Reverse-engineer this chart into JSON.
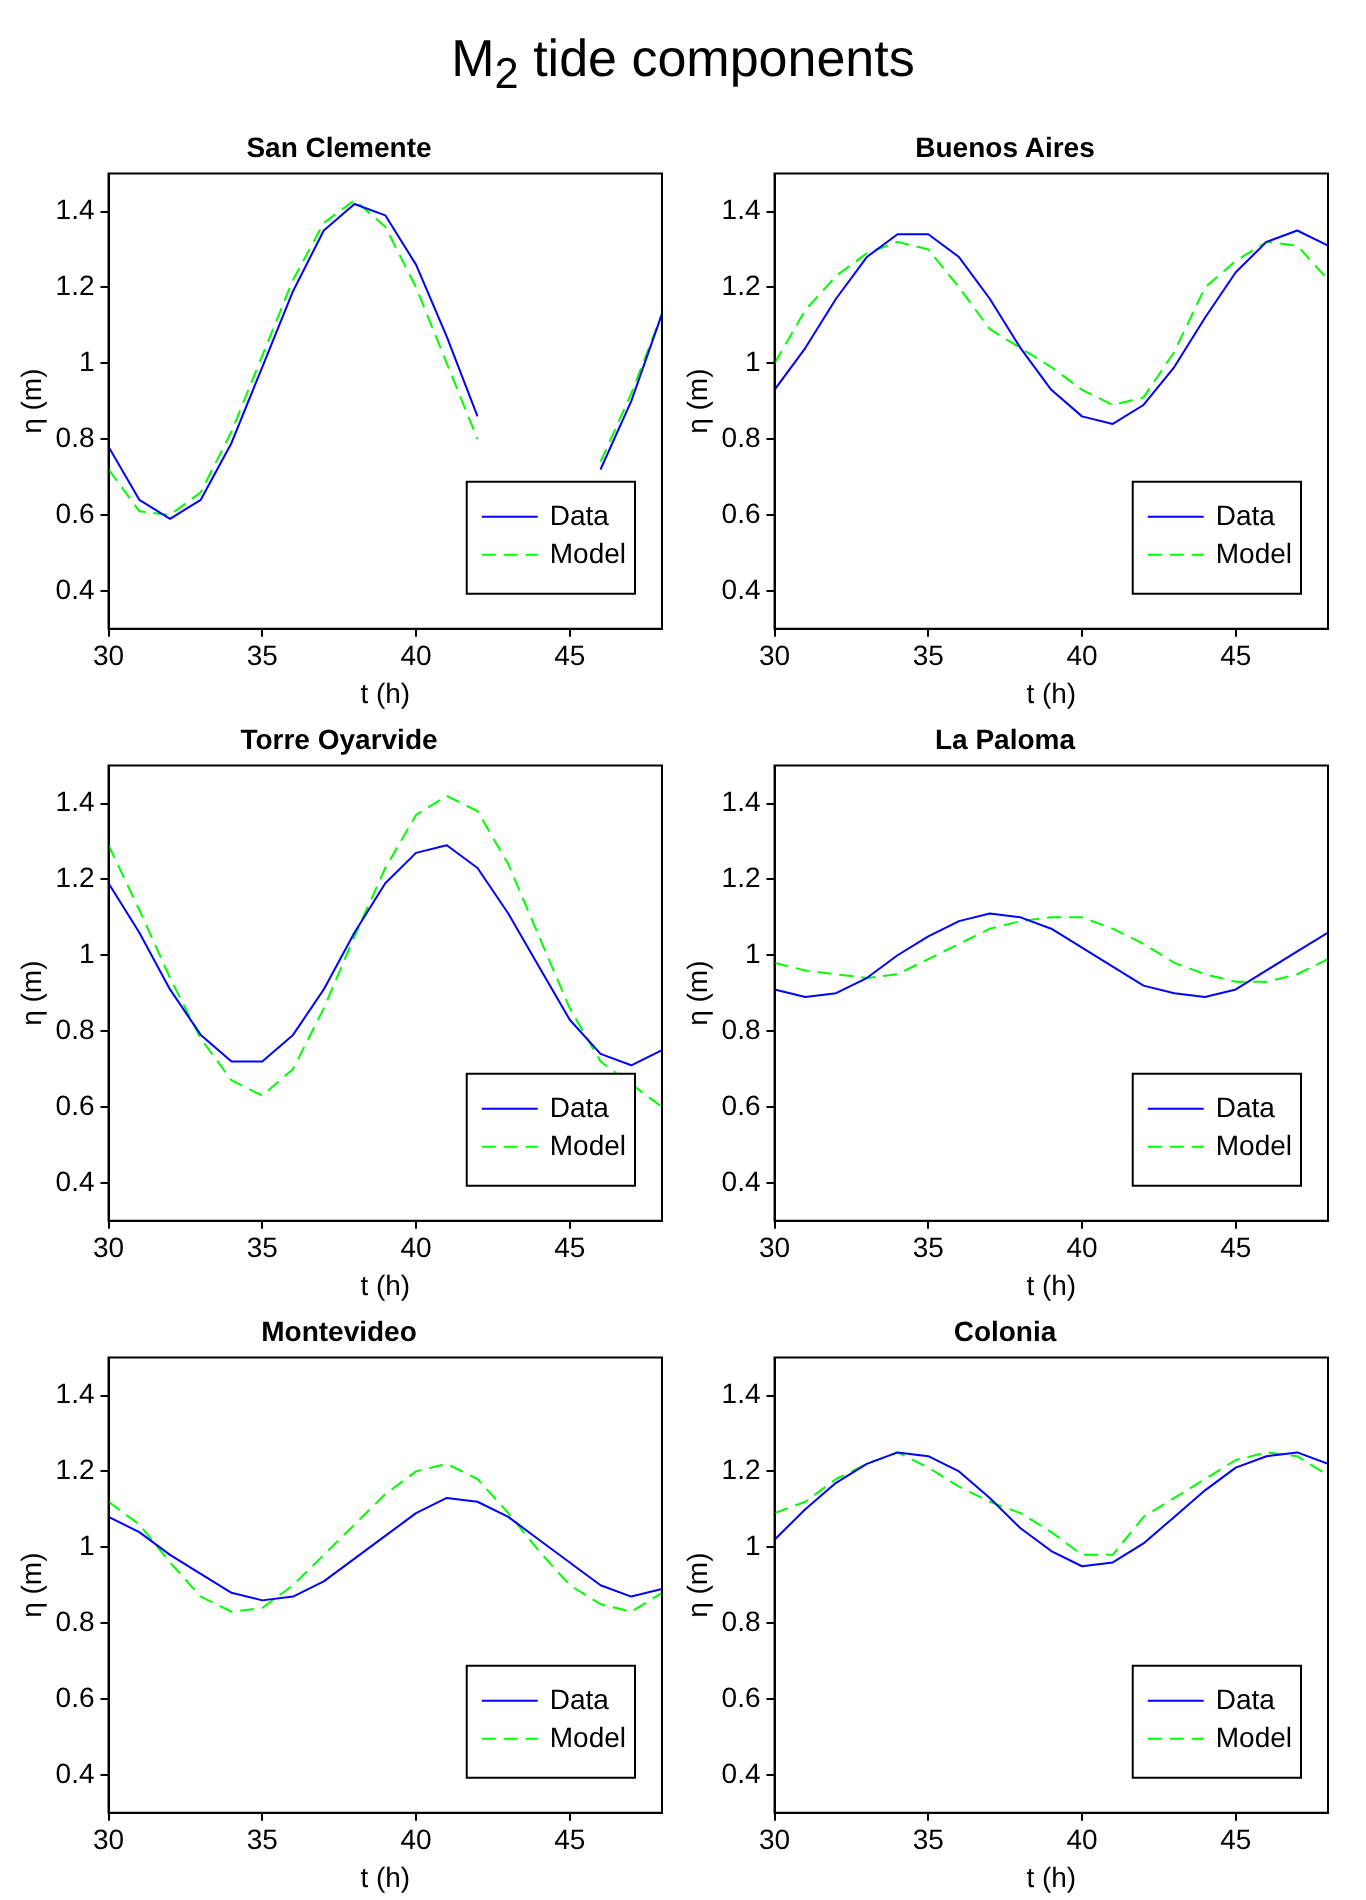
{
  "chart_data": [
    {
      "type": "other",
      "title": "M$_{2}$ tide components"
    },
    {
      "type": "line",
      "title": "San Clemente",
      "xlabel": "t (h)",
      "ylabel": "η (m)",
      "x": [
        30,
        31,
        32,
        33,
        34,
        35,
        36,
        37,
        38,
        39,
        40,
        41,
        42,
        43,
        44,
        45,
        46,
        47,
        48
      ],
      "xlim": [
        30,
        48
      ],
      "xticks": [
        30,
        35,
        40,
        45
      ],
      "ylim": [
        0.3,
        1.5
      ],
      "yticks": [
        0.4,
        0.6,
        0.8,
        1,
        1.2,
        1.4
      ],
      "legend": "bottom right",
      "series": [
        {
          "name": "Data",
          "color": "#0000ff",
          "line_style": "solid",
          "values": [
            0.78,
            0.64,
            0.59,
            0.64,
            0.79,
            0.99,
            1.19,
            1.35,
            1.42,
            1.39,
            1.26,
            1.07,
            0.86,
            null,
            null,
            null,
            0.72,
            0.9,
            1.13
          ]
        },
        {
          "name": "Model",
          "color": "#00ff00",
          "line_style": "dashed",
          "values": [
            0.72,
            0.61,
            0.6,
            0.66,
            0.82,
            1.02,
            1.22,
            1.37,
            1.43,
            1.36,
            1.2,
            1,
            0.8,
            null,
            null,
            null,
            0.74,
            0.92,
            1.13
          ]
        }
      ]
    },
    {
      "type": "line",
      "title": "Buenos Aires",
      "xlabel": "t (h)",
      "ylabel": "η (m)",
      "x": [
        30,
        31,
        32,
        33,
        34,
        35,
        36,
        37,
        38,
        39,
        40,
        41,
        42,
        43,
        44,
        45,
        46,
        47,
        48
      ],
      "xlim": [
        30,
        48
      ],
      "xticks": [
        30,
        35,
        40,
        45
      ],
      "ylim": [
        0.3,
        1.5
      ],
      "yticks": [
        0.4,
        0.6,
        0.8,
        1,
        1.2,
        1.4
      ],
      "legend": "bottom right",
      "series": [
        {
          "name": "Data",
          "color": "#0000ff",
          "line_style": "solid",
          "values": [
            0.93,
            1.04,
            1.17,
            1.28,
            1.34,
            1.34,
            1.28,
            1.17,
            1.04,
            0.93,
            0.86,
            0.84,
            0.89,
            0.99,
            1.12,
            1.24,
            1.32,
            1.35,
            1.31
          ]
        },
        {
          "name": "Model",
          "color": "#00ff00",
          "line_style": "dashed",
          "values": [
            1,
            1.14,
            1.23,
            1.29,
            1.32,
            1.3,
            1.2,
            1.09,
            1.04,
            0.99,
            0.93,
            0.89,
            0.91,
            1.03,
            1.2,
            1.27,
            1.32,
            1.31,
            1.22
          ]
        }
      ]
    },
    {
      "type": "line",
      "title": "Torre Oyarvide",
      "xlabel": "t (h)",
      "ylabel": "η (m)",
      "x": [
        30,
        31,
        32,
        33,
        34,
        35,
        36,
        37,
        38,
        39,
        40,
        41,
        42,
        43,
        44,
        45,
        46,
        47,
        48
      ],
      "xlim": [
        30,
        48
      ],
      "xticks": [
        30,
        35,
        40,
        45
      ],
      "ylim": [
        0.3,
        1.5
      ],
      "yticks": [
        0.4,
        0.6,
        0.8,
        1,
        1.2,
        1.4
      ],
      "legend": "bottom right",
      "series": [
        {
          "name": "Data",
          "color": "#0000ff",
          "line_style": "solid",
          "values": [
            1.19,
            1.06,
            0.91,
            0.79,
            0.72,
            0.72,
            0.79,
            0.91,
            1.06,
            1.19,
            1.27,
            1.29,
            1.23,
            1.11,
            0.97,
            0.83,
            0.74,
            0.71,
            0.75
          ]
        },
        {
          "name": "Model",
          "color": "#00ff00",
          "line_style": "dashed",
          "values": [
            1.29,
            1.12,
            0.94,
            0.78,
            0.67,
            0.63,
            0.7,
            0.86,
            1.05,
            1.23,
            1.37,
            1.42,
            1.38,
            1.24,
            1.05,
            0.86,
            0.72,
            0.66,
            0.6
          ]
        }
      ]
    },
    {
      "type": "line",
      "title": "La Paloma",
      "xlabel": "t (h)",
      "ylabel": "η (m)",
      "x": [
        30,
        31,
        32,
        33,
        34,
        35,
        36,
        37,
        38,
        39,
        40,
        41,
        42,
        43,
        44,
        45,
        46,
        47,
        48
      ],
      "xlim": [
        30,
        48
      ],
      "xticks": [
        30,
        35,
        40,
        45
      ],
      "ylim": [
        0.3,
        1.5
      ],
      "yticks": [
        0.4,
        0.6,
        0.8,
        1,
        1.2,
        1.4
      ],
      "legend": "bottom right",
      "series": [
        {
          "name": "Data",
          "color": "#0000ff",
          "line_style": "solid",
          "values": [
            0.91,
            0.89,
            0.9,
            0.94,
            1,
            1.05,
            1.09,
            1.11,
            1.1,
            1.07,
            1.02,
            0.97,
            0.92,
            0.9,
            0.89,
            0.91,
            0.96,
            1.01,
            1.06
          ]
        },
        {
          "name": "Model",
          "color": "#00ff00",
          "line_style": "dashed",
          "values": [
            0.98,
            0.96,
            0.95,
            0.94,
            0.95,
            0.99,
            1.03,
            1.07,
            1.09,
            1.1,
            1.1,
            1.07,
            1.03,
            0.98,
            0.95,
            0.93,
            0.93,
            0.95,
            0.99
          ]
        }
      ]
    },
    {
      "type": "line",
      "title": "Montevideo",
      "xlabel": "t (h)",
      "ylabel": "η (m)",
      "x": [
        30,
        31,
        32,
        33,
        34,
        35,
        36,
        37,
        38,
        39,
        40,
        41,
        42,
        43,
        44,
        45,
        46,
        47,
        48
      ],
      "xlim": [
        30,
        48
      ],
      "xticks": [
        30,
        35,
        40,
        45
      ],
      "ylim": [
        0.3,
        1.5
      ],
      "yticks": [
        0.4,
        0.6,
        0.8,
        1,
        1.2,
        1.4
      ],
      "legend": "bottom right",
      "series": [
        {
          "name": "Data",
          "color": "#0000ff",
          "line_style": "solid",
          "values": [
            1.08,
            1.04,
            0.98,
            0.93,
            0.88,
            0.86,
            0.87,
            0.91,
            0.97,
            1.03,
            1.09,
            1.13,
            1.12,
            1.08,
            1.02,
            0.96,
            0.9,
            0.87,
            0.89
          ]
        },
        {
          "name": "Model",
          "color": "#00ff00",
          "line_style": "dashed",
          "values": [
            1.12,
            1.06,
            0.96,
            0.87,
            0.83,
            0.84,
            0.9,
            0.98,
            1.06,
            1.14,
            1.2,
            1.22,
            1.18,
            1.09,
            0.99,
            0.9,
            0.85,
            0.83,
            0.88
          ]
        }
      ]
    },
    {
      "type": "line",
      "title": "Colonia",
      "xlabel": "t (h)",
      "ylabel": "η (m)",
      "x": [
        30,
        31,
        32,
        33,
        34,
        35,
        36,
        37,
        38,
        39,
        40,
        41,
        42,
        43,
        44,
        45,
        46,
        47,
        48
      ],
      "xlim": [
        30,
        48
      ],
      "xticks": [
        30,
        35,
        40,
        45
      ],
      "ylim": [
        0.3,
        1.5
      ],
      "yticks": [
        0.4,
        0.6,
        0.8,
        1,
        1.2,
        1.4
      ],
      "legend": "bottom right",
      "series": [
        {
          "name": "Data",
          "color": "#0000ff",
          "line_style": "solid",
          "values": [
            1.02,
            1.1,
            1.17,
            1.22,
            1.25,
            1.24,
            1.2,
            1.13,
            1.05,
            0.99,
            0.95,
            0.96,
            1.01,
            1.08,
            1.15,
            1.21,
            1.24,
            1.25,
            1.22
          ]
        },
        {
          "name": "Model",
          "color": "#00ff00",
          "line_style": "dashed",
          "values": [
            1.09,
            1.12,
            1.18,
            1.22,
            1.25,
            1.21,
            1.16,
            1.12,
            1.09,
            1.04,
            0.98,
            0.98,
            1.08,
            1.13,
            1.18,
            1.23,
            1.25,
            1.24,
            1.19
          ]
        }
      ]
    }
  ]
}
